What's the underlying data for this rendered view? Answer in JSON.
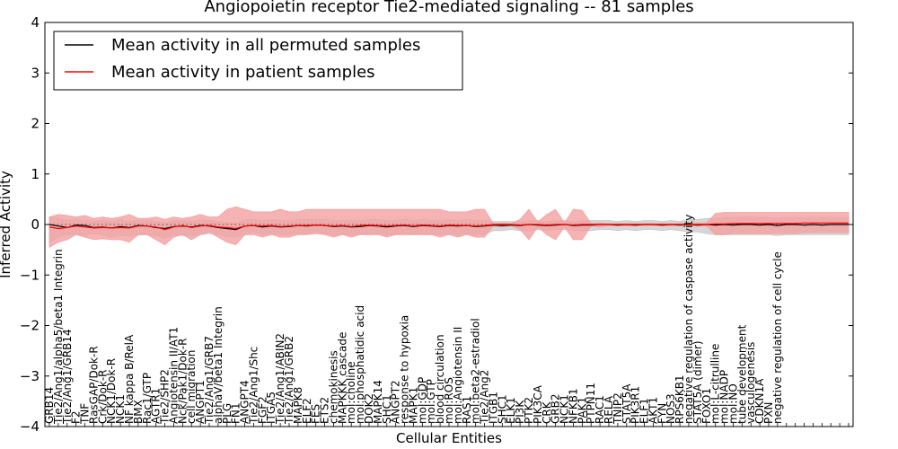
{
  "chart_data": {
    "type": "line",
    "title": "Angiopoietin receptor Tie2-mediated signaling -- 81 samples",
    "xlabel": "Cellular Entities",
    "ylabel": "Inferred Activity",
    "ylim": [
      -4,
      4
    ],
    "yticks": [
      "4",
      "3",
      "2",
      "1",
      "0",
      "−1",
      "−2",
      "−3",
      "−4"
    ],
    "grid": false,
    "legend_position": "top-left",
    "reference_line": 0,
    "series": [
      {
        "name": "Mean activity in all permuted samples",
        "color": "#000000",
        "band_color": "#c8c8c8",
        "values": [
          0.0,
          -0.03,
          -0.06,
          -0.01,
          -0.02,
          -0.06,
          -0.05,
          -0.07,
          -0.04,
          -0.06,
          -0.02,
          -0.03,
          -0.06,
          -0.08,
          -0.04,
          -0.03,
          -0.05,
          -0.02,
          -0.03,
          -0.06,
          -0.08,
          -0.1,
          -0.03,
          -0.02,
          -0.05,
          -0.03,
          -0.05,
          -0.04,
          -0.02,
          -0.03,
          -0.01,
          -0.02,
          -0.04,
          -0.03,
          -0.05,
          -0.04,
          -0.02,
          -0.03,
          -0.05,
          -0.03,
          -0.02,
          -0.04,
          -0.02,
          -0.03,
          -0.04,
          -0.02,
          -0.03,
          -0.02,
          -0.04,
          -0.03,
          -0.01,
          -0.02,
          -0.01,
          -0.02,
          0.0,
          -0.01,
          -0.02,
          -0.01,
          0.0,
          -0.02,
          -0.01,
          -0.01,
          0.0,
          0.0,
          -0.01,
          0.0,
          -0.01,
          0.0,
          0.0,
          -0.01,
          0.0,
          -0.01,
          0.0,
          -0.01,
          0.0,
          -0.01,
          0.0,
          -0.01,
          0.0,
          0.0,
          -0.01,
          0.0,
          -0.02,
          0.0,
          0.0,
          -0.01,
          0.0,
          -0.01,
          0.0,
          0.0,
          0.0
        ],
        "lower": [
          -0.35,
          -0.25,
          -0.2,
          -0.2,
          -0.22,
          -0.18,
          -0.2,
          -0.25,
          -0.22,
          -0.22,
          -0.2,
          -0.2,
          -0.22,
          -0.28,
          -0.2,
          -0.22,
          -0.22,
          -0.2,
          -0.18,
          -0.2,
          -0.25,
          -0.25,
          -0.2,
          -0.15,
          -0.2,
          -0.18,
          -0.2,
          -0.2,
          -0.18,
          -0.18,
          -0.15,
          -0.18,
          -0.2,
          -0.2,
          -0.2,
          -0.2,
          -0.18,
          -0.18,
          -0.2,
          -0.2,
          -0.18,
          -0.2,
          -0.18,
          -0.2,
          -0.2,
          -0.18,
          -0.2,
          -0.18,
          -0.2,
          -0.2,
          -0.12,
          -0.12,
          -0.1,
          -0.12,
          -0.12,
          -0.1,
          -0.12,
          -0.1,
          -0.1,
          -0.12,
          -0.12,
          -0.12,
          -0.1,
          -0.1,
          -0.12,
          -0.1,
          -0.12,
          -0.1,
          -0.1,
          -0.12,
          -0.1,
          -0.12,
          -0.15,
          -0.15,
          -0.18,
          -0.2,
          -0.2,
          -0.2,
          -0.2,
          -0.2,
          -0.2,
          -0.2,
          -0.22,
          -0.2,
          -0.2,
          -0.2,
          -0.2,
          -0.2,
          -0.2,
          -0.2,
          -0.2
        ],
        "upper": [
          0.15,
          0.12,
          0.08,
          0.1,
          0.08,
          0.06,
          0.08,
          0.06,
          0.1,
          0.06,
          0.08,
          0.08,
          0.06,
          0.04,
          0.08,
          0.08,
          0.06,
          0.1,
          0.08,
          0.06,
          0.04,
          0.02,
          0.1,
          0.1,
          0.08,
          0.1,
          0.08,
          0.08,
          0.1,
          0.1,
          0.1,
          0.1,
          0.08,
          0.08,
          0.08,
          0.08,
          0.1,
          0.1,
          0.08,
          0.08,
          0.1,
          0.08,
          0.1,
          0.08,
          0.08,
          0.1,
          0.08,
          0.1,
          0.08,
          0.08,
          0.06,
          0.06,
          0.06,
          0.06,
          0.08,
          0.08,
          0.06,
          0.08,
          0.08,
          0.06,
          0.08,
          0.08,
          0.08,
          0.08,
          0.06,
          0.08,
          0.06,
          0.08,
          0.08,
          0.06,
          0.08,
          0.06,
          0.1,
          0.1,
          0.12,
          0.12,
          0.14,
          0.14,
          0.14,
          0.15,
          0.14,
          0.14,
          0.12,
          0.14,
          0.14,
          0.14,
          0.14,
          0.14,
          0.14,
          0.14,
          0.14
        ]
      },
      {
        "name": "Mean activity in patient samples",
        "color": "#ff0000",
        "band_color": "#f4a0a0",
        "values": [
          -0.05,
          -0.08,
          -0.06,
          -0.03,
          -0.05,
          -0.07,
          -0.06,
          -0.07,
          -0.06,
          -0.07,
          -0.03,
          -0.03,
          -0.05,
          -0.1,
          -0.05,
          -0.02,
          -0.06,
          -0.03,
          -0.02,
          -0.05,
          -0.06,
          -0.08,
          -0.03,
          -0.02,
          -0.03,
          -0.02,
          -0.04,
          -0.03,
          -0.02,
          -0.02,
          -0.01,
          -0.02,
          -0.03,
          -0.02,
          -0.04,
          -0.02,
          -0.01,
          -0.02,
          -0.03,
          -0.02,
          -0.01,
          -0.03,
          -0.01,
          -0.02,
          -0.03,
          -0.01,
          -0.02,
          -0.02,
          -0.03,
          -0.02,
          0.0,
          0.0,
          0.0,
          -0.01,
          0.0,
          0.0,
          -0.01,
          0.0,
          0.0,
          -0.01,
          0.0,
          0.0,
          0.0,
          0.0,
          0.0,
          0.0,
          0.0,
          0.0,
          0.0,
          0.0,
          0.0,
          0.0,
          0.0,
          0.0,
          0.0,
          0.01,
          0.01,
          0.02,
          0.02,
          0.02,
          0.02,
          0.02,
          0.02,
          0.02,
          0.02,
          0.03,
          0.03,
          0.03,
          0.03,
          0.03,
          0.03
        ],
        "lower": [
          -0.45,
          -0.35,
          -0.3,
          -0.2,
          -0.25,
          -0.3,
          -0.28,
          -0.3,
          -0.3,
          -0.35,
          -0.2,
          -0.2,
          -0.3,
          -0.4,
          -0.25,
          -0.2,
          -0.3,
          -0.2,
          -0.15,
          -0.25,
          -0.35,
          -0.4,
          -0.2,
          -0.2,
          -0.25,
          -0.2,
          -0.25,
          -0.25,
          -0.2,
          -0.2,
          -0.18,
          -0.2,
          -0.25,
          -0.2,
          -0.25,
          -0.2,
          -0.2,
          -0.2,
          -0.25,
          -0.2,
          -0.2,
          -0.2,
          -0.2,
          -0.2,
          -0.25,
          -0.2,
          -0.25,
          -0.2,
          -0.25,
          -0.25,
          -0.03,
          -0.05,
          -0.02,
          -0.1,
          -0.3,
          -0.05,
          -0.2,
          -0.3,
          -0.05,
          -0.3,
          -0.3,
          -0.03,
          -0.05,
          -0.02,
          -0.03,
          -0.03,
          -0.03,
          -0.02,
          -0.02,
          -0.03,
          -0.02,
          -0.02,
          -0.03,
          -0.03,
          -0.03,
          -0.2,
          -0.2,
          -0.18,
          -0.18,
          -0.18,
          -0.18,
          -0.18,
          -0.18,
          -0.18,
          -0.18,
          -0.16,
          -0.16,
          -0.16,
          -0.16,
          -0.16,
          -0.16
        ],
        "upper": [
          0.15,
          0.2,
          0.18,
          0.15,
          0.18,
          0.12,
          0.15,
          0.12,
          0.15,
          0.2,
          0.12,
          0.12,
          0.15,
          0.1,
          0.15,
          0.12,
          0.15,
          0.2,
          0.15,
          0.15,
          0.3,
          0.35,
          0.3,
          0.25,
          0.25,
          0.25,
          0.3,
          0.25,
          0.25,
          0.3,
          0.3,
          0.3,
          0.3,
          0.3,
          0.3,
          0.3,
          0.3,
          0.3,
          0.3,
          0.3,
          0.3,
          0.3,
          0.3,
          0.3,
          0.3,
          0.25,
          0.25,
          0.25,
          0.3,
          0.3,
          0.02,
          0.03,
          0.02,
          0.1,
          0.3,
          0.05,
          0.2,
          0.3,
          0.03,
          0.3,
          0.28,
          0.02,
          0.03,
          0.02,
          0.02,
          0.02,
          0.02,
          0.02,
          0.02,
          0.02,
          0.02,
          0.02,
          0.03,
          0.03,
          0.03,
          0.22,
          0.24,
          0.24,
          0.24,
          0.24,
          0.24,
          0.24,
          0.24,
          0.24,
          0.24,
          0.24,
          0.24,
          0.24,
          0.24,
          0.24,
          0.24
        ]
      }
    ],
    "categories": [
      "GRB14",
      "Tie2/Ang1/alpha5/beta1 Integrin",
      "Tie2/Ang1/GRB14",
      "F2",
      "TNF",
      "RasGAP/Dok-R",
      "Crk/Dok-R",
      "NCK1/Dok-R",
      "NCK1",
      "NF kappa B/RelA",
      "BMX",
      "Rac1/GTP",
      "AGTR1",
      "Tie2/SHP2",
      "Angiotensin II/AT1",
      "Nck/Pak1/Dok-R",
      "cell migration",
      "ANGPT1",
      "Tie2/Ang1/GRB7",
      "alphaV/beta1 Integrin",
      "PLG",
      "FN1",
      "ANGPT4",
      "Tie2/Ang1/Shc",
      "FGF2",
      "ITGA5",
      "Tie2/Ang1/ABIN2",
      "Tie2/Ang1/GRB2",
      "MAPK8",
      "ELF2",
      "FES",
      "ETS2",
      "chemokinesis",
      "MAPKKK cascade",
      "mol:choline",
      "mol:phosphatidic acid",
      "DOK2",
      "MAPK14",
      "SHC1",
      "ANGPT2",
      "response to hypoxia",
      "MAPK1",
      "mol:GDP",
      "mol:GTP",
      "blood circulation",
      "mol:ROS",
      "mol:Angiotensin II",
      "RAS1",
      "mol:beta2-estradiol",
      "Tie2/Ang2",
      "ITGB1",
      "SHC1",
      "ELK1",
      "PI3K",
      "PTK2",
      "PIK3CA",
      "CRK",
      "GRB2",
      "NCK1",
      "NFKB1",
      "PAK1",
      "PTPN11",
      "RAC1",
      "RELA",
      "TNIP2",
      "STAT5A",
      "PIK3R1",
      "ELF1",
      "AKT1",
      "FYN",
      "NOS3",
      "RPS6KB1",
      "negative regulation of caspase activity",
      "STAT5A (dimer)",
      "FOXO1",
      "mol:L-citrulline",
      "mol:NADP",
      "mol:NO",
      "tube development",
      "vasculogenesis",
      "CDKN1A",
      "PXN",
      "negative regulation of cell cycle",
      "",
      "",
      "",
      "",
      "",
      "",
      "",
      ""
    ]
  },
  "legend": {
    "permuted_label": "Mean activity in all permuted samples",
    "patient_label": "Mean activity in patient samples"
  }
}
